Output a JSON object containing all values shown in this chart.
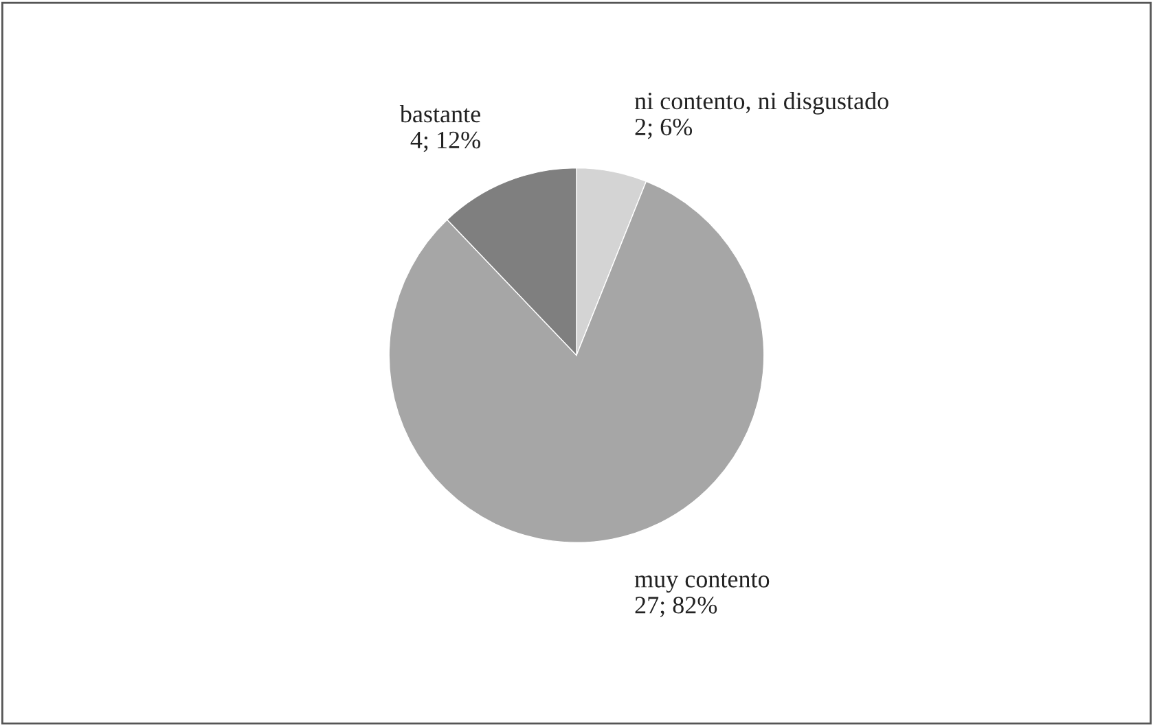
{
  "chart_data": {
    "type": "pie",
    "categories": [
      "ni contento, ni disgustado",
      "muy contento",
      "bastante"
    ],
    "values": [
      2,
      27,
      4
    ],
    "value_labels": [
      "2; 6%",
      "27; 82%",
      "4; 12%"
    ],
    "colors": [
      "#d4d4d4",
      "#a6a6a6",
      "#7f7f7f"
    ]
  }
}
